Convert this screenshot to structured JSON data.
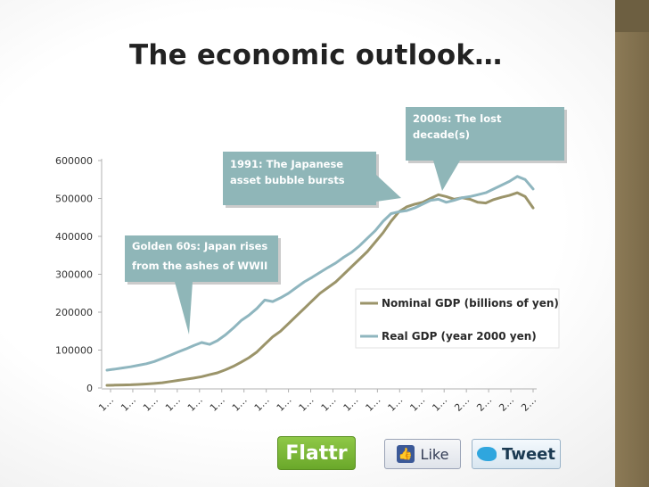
{
  "slide": {
    "title": "The economic outlook…"
  },
  "chart_data": {
    "type": "line",
    "ylim": [
      0,
      600000
    ],
    "yticks": [
      "600000",
      "500000",
      "400000",
      "300000",
      "200000",
      "100000",
      "0"
    ],
    "x_tick_labels": [
      "1…",
      "1…",
      "1…",
      "1…",
      "1…",
      "1…",
      "1…",
      "1…",
      "1…",
      "1…",
      "1…",
      "1…",
      "1…",
      "1…",
      "1…",
      "1…",
      "2…",
      "2…",
      "2…",
      "2…"
    ],
    "x": [
      1955,
      1956,
      1957,
      1958,
      1959,
      1960,
      1961,
      1962,
      1963,
      1964,
      1965,
      1966,
      1967,
      1968,
      1969,
      1970,
      1971,
      1972,
      1973,
      1974,
      1975,
      1976,
      1977,
      1978,
      1979,
      1980,
      1981,
      1982,
      1983,
      1984,
      1985,
      1986,
      1987,
      1988,
      1989,
      1990,
      1991,
      1992,
      1993,
      1994,
      1995,
      1996,
      1997,
      1998,
      1999,
      2000,
      2001,
      2002,
      2003,
      2004,
      2005,
      2006,
      2007,
      2008,
      2009
    ],
    "series": [
      {
        "name": "Nominal GDP (billions of yen)",
        "color": "#9b946a",
        "values": [
          7000,
          7500,
          8000,
          8500,
          9500,
          10500,
          12000,
          14000,
          17000,
          20000,
          23000,
          26000,
          30000,
          35000,
          40000,
          48000,
          57000,
          68000,
          80000,
          95000,
          115000,
          135000,
          150000,
          170000,
          190000,
          210000,
          230000,
          250000,
          265000,
          280000,
          300000,
          320000,
          340000,
          360000,
          385000,
          410000,
          440000,
          465000,
          478000,
          485000,
          490000,
          500000,
          510000,
          505000,
          498000,
          502000,
          498000,
          490000,
          488000,
          497000,
          503000,
          508000,
          515000,
          505000,
          475000
        ]
      },
      {
        "name": "Real GDP (year 2000 yen)",
        "color": "#8fb6bf",
        "values": [
          47000,
          50000,
          53000,
          56000,
          60000,
          64000,
          70000,
          78000,
          86000,
          95000,
          103000,
          112000,
          120000,
          115000,
          125000,
          140000,
          158000,
          178000,
          192000,
          210000,
          232000,
          228000,
          238000,
          250000,
          265000,
          280000,
          292000,
          305000,
          318000,
          330000,
          345000,
          358000,
          375000,
          395000,
          415000,
          440000,
          460000,
          465000,
          468000,
          475000,
          485000,
          495000,
          498000,
          490000,
          495000,
          502000,
          505000,
          510000,
          515000,
          525000,
          535000,
          545000,
          558000,
          550000,
          525000
        ]
      }
    ],
    "annotations": [
      {
        "id": "sixties",
        "text": [
          "Golden 60s: Japan rises",
          "from the ashes of WWII"
        ]
      },
      {
        "id": "bubble",
        "text": [
          "1991: The Japanese",
          "asset bubble bursts"
        ]
      },
      {
        "id": "lost",
        "text": [
          "2000s: The lost",
          "decade(s)"
        ]
      }
    ],
    "legend": {
      "placement": "right"
    },
    "grid": false,
    "callout_color": "#8fb6b8"
  },
  "social": {
    "flattr_label": "Flattr",
    "like_label": "Like",
    "tweet_label": "Tweet"
  }
}
